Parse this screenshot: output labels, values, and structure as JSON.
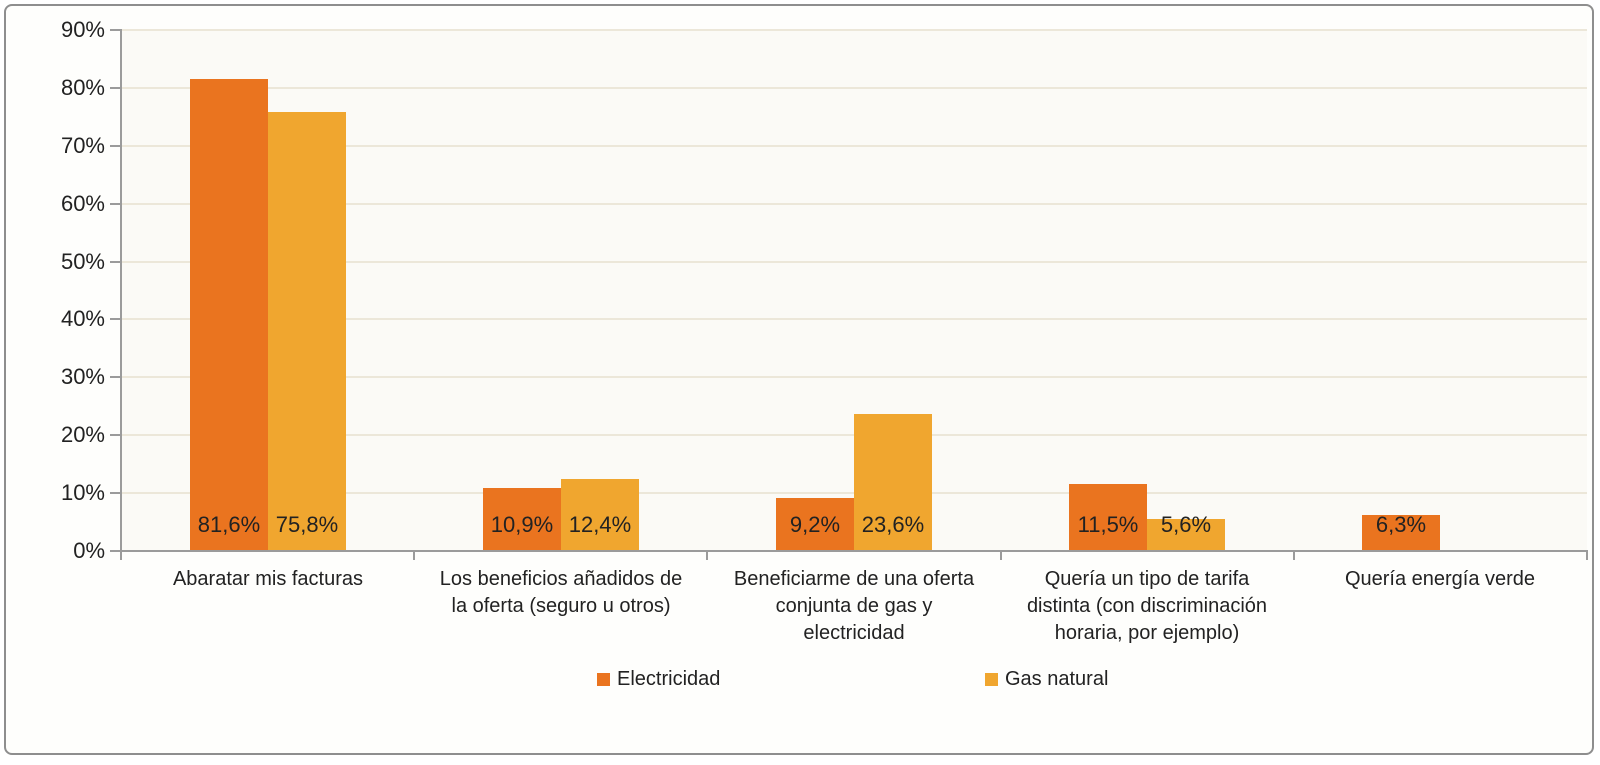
{
  "chart_data": {
    "type": "bar",
    "title": "",
    "xlabel": "",
    "ylabel": "",
    "ylim": [
      0,
      90
    ],
    "y_tick_step": 10,
    "y_ticks": [
      "0%",
      "10%",
      "20%",
      "30%",
      "40%",
      "50%",
      "60%",
      "70%",
      "80%",
      "90%"
    ],
    "grid": true,
    "legend_position": "bottom",
    "categories": [
      "Abaratar mis facturas",
      "Los beneficios añadidos de\nla oferta (seguro u otros)",
      "Beneficiarme de una oferta\nconjunta de gas y\nelectricidad",
      "Quería un tipo de tarifa\ndistinta (con discriminación\nhoraria, por ejemplo)",
      "Quería energía verde"
    ],
    "series": [
      {
        "name": "Electricidad",
        "color": "#EA741F",
        "values": [
          81.6,
          10.9,
          9.2,
          11.5,
          6.3
        ],
        "labels": [
          "81,6%",
          "10,9%",
          "9,2%",
          "11,5%",
          "6,3%"
        ]
      },
      {
        "name": "Gas natural",
        "color": "#F0A62F",
        "values": [
          75.8,
          12.4,
          23.6,
          5.6,
          null
        ],
        "labels": [
          "75,8%",
          "12,4%",
          "23,6%",
          "5,6%",
          null
        ]
      }
    ]
  },
  "colors": {
    "background": "#FFFFFF",
    "frame_border": "#8E8E8E",
    "plot_background": "#FBFAF6",
    "gridline": "#ECE7D9",
    "axis": "#9B9B9B",
    "text": "#222222"
  }
}
